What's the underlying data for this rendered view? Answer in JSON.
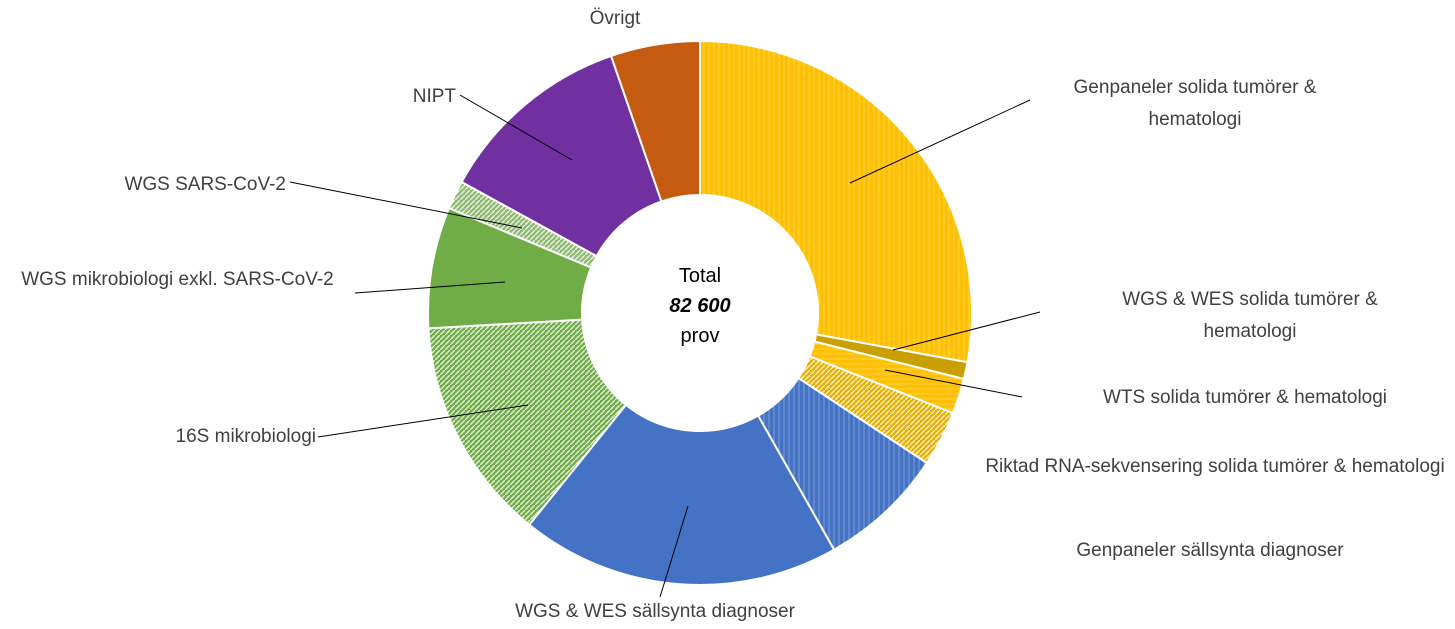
{
  "chart_data": {
    "type": "donut",
    "center_text": [
      "Total",
      "82 600",
      "prov"
    ],
    "categories": [
      "Genpaneler solida tumörer & hematologi",
      "WGS & WES solida tumörer & hematologi",
      "WTS solida tumörer & hematologi",
      "Riktad RNA-sekvensering solida tumörer & hematologi",
      "Genpaneler sällsynta diagnoser",
      "WGS & WES sällsynta diagnoser",
      "16S mikrobiologi",
      "WGS mikrobiologi exkl. SARS-CoV-2",
      "WGS SARS-CoV-2",
      "NIPT",
      "Övrigt"
    ],
    "values": [
      27.9,
      1,
      2.1,
      3.3,
      7.5,
      19,
      13.3,
      7.2,
      1.7,
      11.7,
      5.3
    ],
    "colors": [
      "#FFC000",
      "#C9A000",
      "#FFC000",
      "#E5B000",
      "#4472C4",
      "#4472C4",
      "#70AD47",
      "#70AD47",
      "#8FB872",
      "#7030A0",
      "#C55A11"
    ],
    "patterns": [
      "vertical",
      "solid",
      "horizontal",
      "diagonal",
      "vertical",
      "solid",
      "diagonal",
      "solid",
      "diagonal",
      "solid",
      "solid"
    ]
  }
}
